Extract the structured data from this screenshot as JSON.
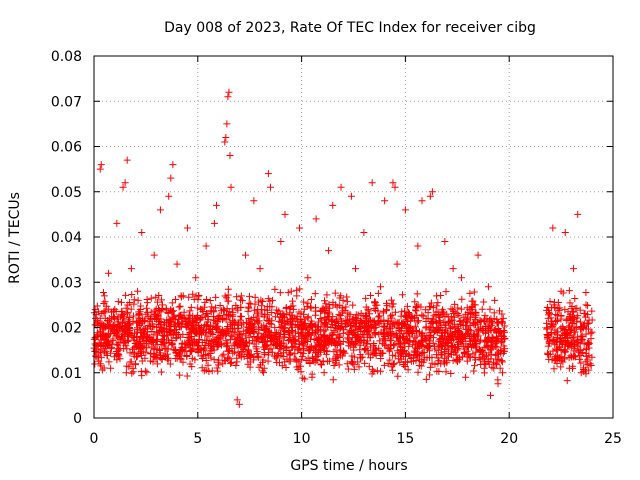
{
  "chart_data": {
    "type": "scatter",
    "title": "Day 008 of 2023, Rate Of TEC Index for receiver cibg",
    "xlabel": "GPS time / hours",
    "ylabel": "ROTI / TECUs",
    "xlim": [
      0,
      25
    ],
    "ylim": [
      0,
      0.08
    ],
    "xticks": [
      0,
      5,
      10,
      15,
      20,
      25
    ],
    "yticks": [
      0,
      0.01,
      0.02,
      0.03,
      0.04,
      0.05,
      0.06,
      0.07,
      0.08
    ],
    "xtick_labels": [
      "0",
      "5",
      "10",
      "15",
      "20",
      "25"
    ],
    "ytick_labels": [
      "0",
      "0.01",
      "0.02",
      "0.03",
      "0.04",
      "0.05",
      "0.06",
      "0.07",
      "0.08"
    ],
    "grid": true,
    "marker": "+",
    "marker_color": "#ff0000",
    "series": [
      {
        "name": "ROTI",
        "points": [
          [
            0.1,
            0.016
          ],
          [
            0.2,
            0.021
          ],
          [
            0.3,
            0.012
          ],
          [
            0.3,
            0.055
          ],
          [
            0.35,
            0.056
          ],
          [
            0.5,
            0.027
          ],
          [
            0.6,
            0.018
          ],
          [
            0.7,
            0.032
          ],
          [
            0.8,
            0.011
          ],
          [
            1.0,
            0.024
          ],
          [
            1.1,
            0.043
          ],
          [
            1.2,
            0.015
          ],
          [
            1.4,
            0.051
          ],
          [
            1.5,
            0.052
          ],
          [
            1.6,
            0.057
          ],
          [
            1.7,
            0.019
          ],
          [
            1.8,
            0.033
          ],
          [
            2.0,
            0.012
          ],
          [
            2.1,
            0.028
          ],
          [
            2.3,
            0.041
          ],
          [
            2.5,
            0.017
          ],
          [
            2.7,
            0.022
          ],
          [
            2.9,
            0.036
          ],
          [
            3.0,
            0.014
          ],
          [
            3.2,
            0.046
          ],
          [
            3.3,
            0.025
          ],
          [
            3.5,
            0.019
          ],
          [
            3.6,
            0.049
          ],
          [
            3.7,
            0.053
          ],
          [
            3.8,
            0.056
          ],
          [
            3.9,
            0.021
          ],
          [
            4.0,
            0.034
          ],
          [
            4.2,
            0.013
          ],
          [
            4.3,
            0.027
          ],
          [
            4.5,
            0.042
          ],
          [
            4.7,
            0.018
          ],
          [
            4.9,
            0.031
          ],
          [
            5.0,
            0.015
          ],
          [
            5.2,
            0.024
          ],
          [
            5.4,
            0.038
          ],
          [
            5.6,
            0.016
          ],
          [
            5.8,
            0.043
          ],
          [
            5.9,
            0.047
          ],
          [
            6.0,
            0.022
          ],
          [
            6.2,
            0.012
          ],
          [
            6.3,
            0.061
          ],
          [
            6.35,
            0.062
          ],
          [
            6.4,
            0.065
          ],
          [
            6.45,
            0.071
          ],
          [
            6.5,
            0.072
          ],
          [
            6.55,
            0.058
          ],
          [
            6.6,
            0.051
          ],
          [
            6.8,
            0.019
          ],
          [
            6.9,
            0.004
          ],
          [
            7.0,
            0.003
          ],
          [
            7.1,
            0.027
          ],
          [
            7.3,
            0.036
          ],
          [
            7.5,
            0.014
          ],
          [
            7.7,
            0.048
          ],
          [
            7.9,
            0.021
          ],
          [
            8.0,
            0.033
          ],
          [
            8.2,
            0.011
          ],
          [
            8.4,
            0.054
          ],
          [
            8.5,
            0.051
          ],
          [
            8.6,
            0.026
          ],
          [
            8.8,
            0.017
          ],
          [
            9.0,
            0.039
          ],
          [
            9.2,
            0.045
          ],
          [
            9.3,
            0.013
          ],
          [
            9.5,
            0.028
          ],
          [
            9.7,
            0.019
          ],
          [
            9.9,
            0.042
          ],
          [
            10.1,
            0.015
          ],
          [
            10.3,
            0.031
          ],
          [
            10.5,
            0.009
          ],
          [
            10.7,
            0.044
          ],
          [
            10.9,
            0.022
          ],
          [
            11.1,
            0.018
          ],
          [
            11.3,
            0.037
          ],
          [
            11.5,
            0.047
          ],
          [
            11.7,
            0.014
          ],
          [
            11.9,
            0.051
          ],
          [
            12.0,
            0.026
          ],
          [
            12.2,
            0.012
          ],
          [
            12.4,
            0.049
          ],
          [
            12.6,
            0.033
          ],
          [
            12.8,
            0.017
          ],
          [
            13.0,
            0.041
          ],
          [
            13.2,
            0.024
          ],
          [
            13.4,
            0.052
          ],
          [
            13.6,
            0.015
          ],
          [
            13.8,
            0.029
          ],
          [
            14.0,
            0.048
          ],
          [
            14.2,
            0.019
          ],
          [
            14.4,
            0.052
          ],
          [
            14.5,
            0.051
          ],
          [
            14.6,
            0.034
          ],
          [
            14.8,
            0.013
          ],
          [
            15.0,
            0.046
          ],
          [
            15.2,
            0.023
          ],
          [
            15.4,
            0.017
          ],
          [
            15.6,
            0.038
          ],
          [
            15.8,
            0.048
          ],
          [
            16.0,
            0.016
          ],
          [
            16.2,
            0.049
          ],
          [
            16.3,
            0.05
          ],
          [
            16.5,
            0.027
          ],
          [
            16.7,
            0.012
          ],
          [
            16.9,
            0.039
          ],
          [
            17.1,
            0.021
          ],
          [
            17.3,
            0.033
          ],
          [
            17.5,
            0.015
          ],
          [
            17.7,
            0.031
          ],
          [
            17.9,
            0.009
          ],
          [
            18.1,
            0.024
          ],
          [
            18.3,
            0.018
          ],
          [
            18.5,
            0.036
          ],
          [
            18.7,
            0.014
          ],
          [
            18.8,
            0.011
          ],
          [
            19.0,
            0.029
          ],
          [
            19.1,
            0.005
          ],
          [
            19.2,
            0.021
          ],
          [
            19.3,
            0.026
          ],
          [
            19.5,
            0.013
          ],
          [
            19.6,
            0.017
          ],
          [
            21.9,
            0.014
          ],
          [
            22.1,
            0.042
          ],
          [
            22.3,
            0.019
          ],
          [
            22.5,
            0.028
          ],
          [
            22.7,
            0.041
          ],
          [
            22.9,
            0.011
          ],
          [
            23.1,
            0.033
          ],
          [
            23.3,
            0.045
          ],
          [
            23.5,
            0.018
          ],
          [
            23.7,
            0.025
          ],
          [
            23.9,
            0.012
          ]
        ]
      }
    ],
    "band_samples": [
      {
        "x_range": [
          0.0,
          18.8
        ],
        "y_low": 0.007,
        "y_high": 0.03
      },
      {
        "x_range": [
          18.8,
          19.8
        ],
        "y_low": 0.006,
        "y_high": 0.028
      },
      {
        "x_range": [
          21.8,
          24.0
        ],
        "y_low": 0.006,
        "y_high": 0.03
      }
    ]
  }
}
